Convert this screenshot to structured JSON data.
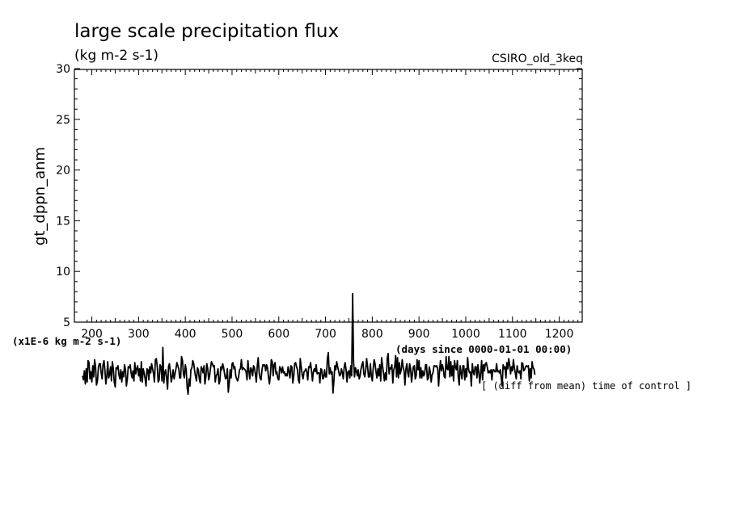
{
  "chart_data": {
    "type": "line",
    "title": "large scale precipitation flux",
    "subtitle": "(kg m-2 s-1)",
    "model_label": "CSIRO_old_3keq",
    "ylabel": "gt_dppn_anm",
    "xlabel": "(days since 0000-01-01 00:00)",
    "scale_label": "(x1E-6 kg m-2 s-1)",
    "note": "[ (diff from mean) time of control ]",
    "xlim": [
      180,
      1275
    ],
    "ylim": [
      5,
      30
    ],
    "x_ticks": [
      200,
      300,
      400,
      500,
      600,
      700,
      800,
      900,
      1000,
      1100,
      1200
    ],
    "x_tick_labels": [
      "200",
      "300",
      "400",
      "500",
      "600",
      "700",
      "800",
      "900",
      "1000",
      "1100",
      "1200"
    ],
    "y_ticks": [
      5,
      10,
      15,
      20,
      25,
      30
    ],
    "y_tick_labels": [
      "5",
      "10",
      "15",
      "20",
      "25",
      "30"
    ],
    "grid": false,
    "series": [
      {
        "color": "#000000",
        "x_start": 180,
        "x_step": 2,
        "values": [
          -0.3,
          -0.7,
          0.2,
          -1.1,
          0.4,
          -0.9,
          1.2,
          1.0,
          -0.6,
          0.1,
          -0.9,
          0.7,
          -0.4,
          1.3,
          0.6,
          -1.2,
          -0.8,
          0.5,
          0.9,
          0.9,
          0.0,
          -0.6,
          0.8,
          1.2,
          0.3,
          -1.1,
          -0.3,
          1.1,
          -0.5,
          -0.2,
          0.6,
          -0.8,
          1.1,
          0.4,
          -0.9,
          -1.4,
          0.5,
          0.4,
          0.7,
          -0.2,
          -0.6,
          0.3,
          -0.9,
          0.1,
          -0.4,
          0.8,
          0.3,
          -1.3,
          -0.6,
          0.6,
          0.5,
          0.8,
          0.0,
          -0.5,
          0.2,
          -0.8,
          1.0,
          -0.1,
          0.4,
          0.7,
          -0.3,
          0.4,
          -0.8,
          1.1,
          -0.9,
          0.4,
          0.0,
          -0.6,
          -1.3,
          0.4,
          0.3,
          -0.7,
          0.6,
          0.0,
          0.9,
          0.4,
          -0.1,
          -0.9,
          1.3,
          1.4,
          0.6,
          -0.9,
          -0.7,
          0.8,
          0.6,
          -0.8,
          2.5,
          -1.0,
          0.0,
          0.3,
          -0.5,
          -1.6,
          0.6,
          0.9,
          0.1,
          -0.9,
          -0.4,
          0.3,
          -0.6,
          -0.1,
          0.4,
          1.0,
          0.7,
          0.4,
          -0.5,
          -0.5,
          1.6,
          1.2,
          -0.1,
          -0.5,
          0.8,
          0.3,
          -1.5,
          -2.1,
          -0.6,
          -1.3,
          0.3,
          0.5,
          1.2,
          0.9,
          0.2,
          -0.4,
          -0.8,
          0.5,
          0.3,
          -0.6,
          -1.0,
          0.6,
          0.4,
          0.0,
          0.7,
          -1.1,
          -0.4,
          0.9,
          0.4,
          -0.7,
          -0.3,
          0.5,
          1.1,
          0.9,
          0.6,
          0.7,
          -0.9,
          -0.3,
          -0.1,
          0.4,
          -1.1,
          -0.8,
          0.6,
          0.3,
          0.9,
          0.5,
          -0.1,
          -0.6,
          -0.5,
          0.4,
          -1.9,
          -1.0,
          0.3,
          -0.5,
          0.9,
          1.0,
          0.4,
          0.6,
          -0.3,
          -0.6,
          -0.8,
          -0.4,
          0.3,
          0.4,
          1.3,
          0.3,
          0.5,
          0.4,
          0.3,
          0.1,
          -0.7,
          1.2,
          0.2,
          -0.6,
          0.5,
          0.3,
          -0.3,
          0.7,
          0.5,
          -0.2,
          -0.9,
          0.7,
          1.5,
          0.0,
          -0.5,
          -0.7,
          0.3,
          0.8,
          0.7,
          0.8,
          0.2,
          0.8,
          0.5,
          -0.4,
          -1.1,
          -0.2,
          1.3,
          1.1,
          -0.3,
          0.8,
          1.0,
          -0.1,
          0.1,
          -0.6,
          -0.7,
          0.6,
          0.4,
          0.0,
          0.6,
          0.0,
          0.1,
          -0.3,
          -0.1,
          -0.3,
          0.6,
          0.1,
          -0.5,
          0.7,
          0.6,
          -1.0,
          -0.3,
          0.9,
          1.0,
          0.6,
          0.3,
          -0.7,
          -1.0,
          1.4,
          0.6,
          -0.2,
          -0.6,
          0.1,
          0.2,
          0.4,
          0.1,
          -0.7,
          0.6,
          0.5,
          1.0,
          0.2,
          -0.8,
          0.1,
          0.4,
          0.1,
          0.8,
          -0.1,
          0.0,
          0.0,
          -1.0,
          0.4,
          0.3,
          -0.6,
          -0.5,
          0.3,
          -0.4,
          -0.4,
          1.4,
          2.0,
          -0.1,
          0.5,
          -0.1,
          0.1,
          -2.0,
          -0.7,
          0.7,
          0.3,
          1.1,
          0.6,
          0.2,
          -0.3,
          -0.2,
          0.4,
          0.0,
          -0.6,
          0.6,
          1.0,
          0.3,
          -0.9,
          0.1,
          0.2,
          -0.5,
          0.7,
          -0.3,
          7.8,
          1.2,
          -0.4,
          0.5,
          0.2,
          -0.3,
          0.3,
          -0.6,
          -0.3,
          0.4,
          0.8,
          1.1,
          -0.1,
          -0.4,
          0.3,
          1.4,
          0.6,
          -0.4,
          -0.4,
          0.9,
          -0.3,
          -0.8,
          0.4,
          1.3,
          0.9,
          0.1,
          -0.5,
          0.4,
          -0.3,
          0.8,
          -0.8,
          1.5,
          0.7,
          0.0,
          -0.8,
          0.0,
          -0.7,
          1.4,
          1.9,
          -0.1,
          0.5,
          0.4,
          0.8,
          -1.0,
          0.3,
          0.6,
          1.7,
          -0.4,
          1.5,
          -0.5,
          1.0,
          -0.1,
          0.3,
          1.3,
          0.6,
          0.2,
          -1.2,
          0.4,
          0.9,
          0.0,
          -0.4,
          0.9,
          0.4,
          -0.9,
          -0.1,
          0.6,
          0.7,
          -0.6,
          -0.3,
          1.3,
          0.3,
          1.2,
          -0.5,
          0.5,
          -0.5,
          0.2,
          -0.3,
          -0.1,
          0.8,
          0.8,
          -0.7,
          -0.5,
          0.6,
          0.1,
          -0.9,
          -0.2,
          0.0,
          0.7,
          0.7,
          0.6,
          0.7,
          0.4,
          -1.3,
          0.2,
          1.2,
          0.2,
          0.8,
          0.4,
          -0.4,
          -0.5,
          1.6,
          0.4,
          0.3,
          1.6,
          -0.4,
          1.1,
          -0.3,
          0.7,
          -0.8,
          1.2,
          0.6,
          0.3,
          1.2,
          -0.4,
          -1.2,
          0.7,
          0.0,
          -0.6,
          0.7,
          0.7,
          -0.7,
          0.4,
          -0.4,
          1.5,
          0.4,
          0.0,
          0.1,
          -1.3,
          0.9,
          0.1,
          -0.2,
          0.6,
          0.6,
          -0.5,
          0.8,
          0.1,
          -1.0,
          0.0,
          1.2,
          -0.7,
          0.8,
          0.2,
          0.9,
          1.0,
          0.6,
          0.0,
          0.2,
          0.0,
          0.3,
          -0.7,
          0.3,
          0.3,
          0.1,
          0.1,
          0.9,
          0.1,
          0.2,
          0.0,
          0.3,
          -0.5,
          -1.3,
          0.8,
          0.4,
          0.6,
          -0.5,
          1.0,
          0.4,
          1.4,
          0.8,
          -0.1,
          0.6,
          0.2,
          1.3,
          0.5,
          0.0,
          -0.6,
          0.7,
          0.1,
          0.0,
          0.2,
          -0.6,
          1.0,
          0.9,
          0.2,
          0.3,
          0.6,
          0.7,
          0.6,
          0.7,
          -0.8,
          0.4,
          -0.5,
          1.1,
          0.5,
          0.4,
          -0.2
        ]
      }
    ]
  }
}
